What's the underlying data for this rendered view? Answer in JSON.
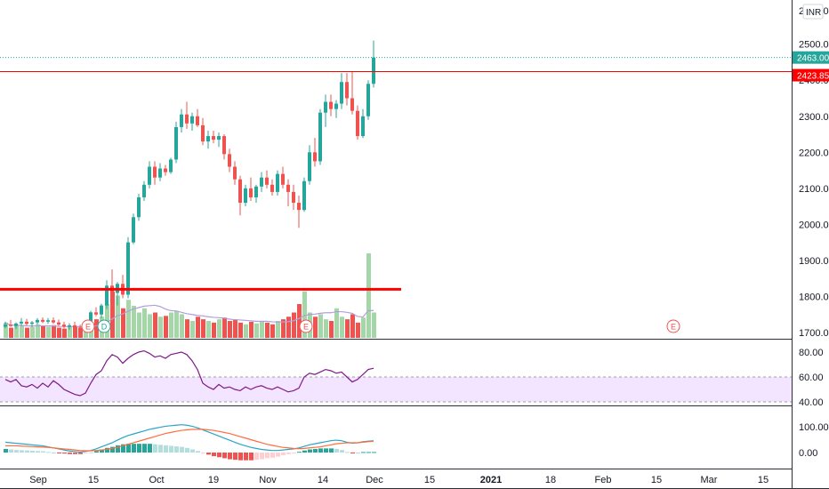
{
  "price_scale": {
    "currency": "INR",
    "top_partial_label": "2600.00",
    "ticks": [
      "2500.00",
      "2400.00",
      "2300.00",
      "2200.00",
      "2100.00",
      "2000.00",
      "1900.00",
      "1800.00",
      "1700.00"
    ]
  },
  "last_price_tag": "2463.00",
  "hline_tag": "2423.85",
  "rsi_scale": {
    "ticks": [
      "80.00",
      "60.00",
      "40.00"
    ]
  },
  "macd_scale": {
    "ticks": [
      "100.00",
      "0.00"
    ]
  },
  "time_axis": {
    "labels": [
      "Sep",
      "15",
      "Oct",
      "19",
      "Nov",
      "14",
      "Dec",
      "15",
      "2021",
      "18",
      "Feb",
      "15",
      "Mar",
      "15"
    ],
    "bold": [
      "2021"
    ]
  },
  "event_badges": [
    "E",
    "D",
    "E",
    "E"
  ],
  "colors": {
    "up": "#26a69a",
    "down": "#ef5350",
    "vol_up": "#a5d6a7",
    "vol_down": "#ef5350",
    "hline": "#ff0000",
    "rsi_line": "#7e1a88",
    "rsi_band": "#f3e5ff",
    "macd_line": "#2aa4c8",
    "signal_line": "#ff6d3a",
    "hist_up_strong": "#26a69a",
    "hist_up_weak": "#b2dfdb",
    "hist_down_strong": "#ef5350",
    "hist_down_weak": "#ffcdd2"
  },
  "chart_data": {
    "type": "candlestick",
    "horizontal_lines": [
      2423.85,
      1820
    ],
    "price_range": [
      1690,
      2600
    ],
    "candles": [
      {
        "o": 1716,
        "h": 1730,
        "l": 1712,
        "c": 1722
      },
      {
        "o": 1722,
        "h": 1735,
        "l": 1716,
        "c": 1718
      },
      {
        "o": 1718,
        "h": 1728,
        "l": 1710,
        "c": 1725
      },
      {
        "o": 1725,
        "h": 1740,
        "l": 1718,
        "c": 1730
      },
      {
        "o": 1730,
        "h": 1738,
        "l": 1720,
        "c": 1724
      },
      {
        "o": 1724,
        "h": 1732,
        "l": 1715,
        "c": 1728
      },
      {
        "o": 1728,
        "h": 1740,
        "l": 1722,
        "c": 1735
      },
      {
        "o": 1735,
        "h": 1742,
        "l": 1726,
        "c": 1730
      },
      {
        "o": 1730,
        "h": 1740,
        "l": 1724,
        "c": 1734
      },
      {
        "o": 1734,
        "h": 1742,
        "l": 1724,
        "c": 1728
      },
      {
        "o": 1728,
        "h": 1736,
        "l": 1718,
        "c": 1722
      },
      {
        "o": 1722,
        "h": 1730,
        "l": 1712,
        "c": 1716
      },
      {
        "o": 1716,
        "h": 1726,
        "l": 1708,
        "c": 1720
      },
      {
        "o": 1720,
        "h": 1730,
        "l": 1712,
        "c": 1714
      },
      {
        "o": 1714,
        "h": 1722,
        "l": 1706,
        "c": 1712
      },
      {
        "o": 1712,
        "h": 1730,
        "l": 1708,
        "c": 1726
      },
      {
        "o": 1726,
        "h": 1760,
        "l": 1720,
        "c": 1756
      },
      {
        "o": 1756,
        "h": 1770,
        "l": 1745,
        "c": 1750
      },
      {
        "o": 1750,
        "h": 1780,
        "l": 1740,
        "c": 1775
      },
      {
        "o": 1775,
        "h": 1845,
        "l": 1765,
        "c": 1830
      },
      {
        "o": 1830,
        "h": 1875,
        "l": 1800,
        "c": 1810
      },
      {
        "o": 1810,
        "h": 1840,
        "l": 1775,
        "c": 1835
      },
      {
        "o": 1835,
        "h": 1860,
        "l": 1795,
        "c": 1805
      },
      {
        "o": 1805,
        "h": 1965,
        "l": 1795,
        "c": 1950
      },
      {
        "o": 1950,
        "h": 2030,
        "l": 1945,
        "c": 2020
      },
      {
        "o": 2020,
        "h": 2085,
        "l": 2010,
        "c": 2075
      },
      {
        "o": 2075,
        "h": 2120,
        "l": 2065,
        "c": 2110
      },
      {
        "o": 2110,
        "h": 2175,
        "l": 2100,
        "c": 2160
      },
      {
        "o": 2160,
        "h": 2175,
        "l": 2110,
        "c": 2130
      },
      {
        "o": 2130,
        "h": 2170,
        "l": 2120,
        "c": 2155
      },
      {
        "o": 2155,
        "h": 2165,
        "l": 2135,
        "c": 2145
      },
      {
        "o": 2145,
        "h": 2185,
        "l": 2140,
        "c": 2180
      },
      {
        "o": 2180,
        "h": 2285,
        "l": 2170,
        "c": 2270
      },
      {
        "o": 2270,
        "h": 2320,
        "l": 2255,
        "c": 2305
      },
      {
        "o": 2305,
        "h": 2340,
        "l": 2265,
        "c": 2280
      },
      {
        "o": 2280,
        "h": 2310,
        "l": 2260,
        "c": 2300
      },
      {
        "o": 2300,
        "h": 2320,
        "l": 2270,
        "c": 2275
      },
      {
        "o": 2275,
        "h": 2295,
        "l": 2220,
        "c": 2230
      },
      {
        "o": 2230,
        "h": 2260,
        "l": 2210,
        "c": 2245
      },
      {
        "o": 2245,
        "h": 2260,
        "l": 2225,
        "c": 2235
      },
      {
        "o": 2235,
        "h": 2255,
        "l": 2215,
        "c": 2245
      },
      {
        "o": 2245,
        "h": 2250,
        "l": 2180,
        "c": 2195
      },
      {
        "o": 2195,
        "h": 2210,
        "l": 2145,
        "c": 2160
      },
      {
        "o": 2160,
        "h": 2175,
        "l": 2110,
        "c": 2125
      },
      {
        "o": 2125,
        "h": 2135,
        "l": 2025,
        "c": 2060
      },
      {
        "o": 2060,
        "h": 2110,
        "l": 2050,
        "c": 2100
      },
      {
        "o": 2100,
        "h": 2130,
        "l": 2065,
        "c": 2075
      },
      {
        "o": 2075,
        "h": 2110,
        "l": 2060,
        "c": 2105
      },
      {
        "o": 2105,
        "h": 2145,
        "l": 2090,
        "c": 2130
      },
      {
        "o": 2130,
        "h": 2150,
        "l": 2100,
        "c": 2110
      },
      {
        "o": 2110,
        "h": 2125,
        "l": 2080,
        "c": 2090
      },
      {
        "o": 2090,
        "h": 2150,
        "l": 2080,
        "c": 2140
      },
      {
        "o": 2140,
        "h": 2160,
        "l": 2100,
        "c": 2110
      },
      {
        "o": 2110,
        "h": 2125,
        "l": 2050,
        "c": 2090
      },
      {
        "o": 2090,
        "h": 2110,
        "l": 2040,
        "c": 2060
      },
      {
        "o": 2060,
        "h": 2080,
        "l": 1990,
        "c": 2040
      },
      {
        "o": 2040,
        "h": 2130,
        "l": 2035,
        "c": 2120
      },
      {
        "o": 2120,
        "h": 2220,
        "l": 2110,
        "c": 2200
      },
      {
        "o": 2200,
        "h": 2240,
        "l": 2160,
        "c": 2175
      },
      {
        "o": 2175,
        "h": 2320,
        "l": 2165,
        "c": 2310
      },
      {
        "o": 2310,
        "h": 2360,
        "l": 2270,
        "c": 2340
      },
      {
        "o": 2340,
        "h": 2360,
        "l": 2300,
        "c": 2320
      },
      {
        "o": 2320,
        "h": 2345,
        "l": 2295,
        "c": 2335
      },
      {
        "o": 2335,
        "h": 2420,
        "l": 2320,
        "c": 2395
      },
      {
        "o": 2395,
        "h": 2420,
        "l": 2330,
        "c": 2350
      },
      {
        "o": 2350,
        "h": 2425,
        "l": 2305,
        "c": 2315
      },
      {
        "o": 2315,
        "h": 2330,
        "l": 2235,
        "c": 2245
      },
      {
        "o": 2245,
        "h": 2320,
        "l": 2240,
        "c": 2300
      },
      {
        "o": 2300,
        "h": 2400,
        "l": 2290,
        "c": 2390
      },
      {
        "o": 2390,
        "h": 2510,
        "l": 2380,
        "c": 2463
      }
    ],
    "volume_relative": [
      0.18,
      0.12,
      0.15,
      0.14,
      0.12,
      0.13,
      0.16,
      0.14,
      0.13,
      0.15,
      0.12,
      0.11,
      0.13,
      0.14,
      0.12,
      0.13,
      0.18,
      0.22,
      0.25,
      0.4,
      0.55,
      0.5,
      0.35,
      0.45,
      0.38,
      0.3,
      0.35,
      0.28,
      0.3,
      0.25,
      0.26,
      0.3,
      0.32,
      0.28,
      0.22,
      0.2,
      0.25,
      0.22,
      0.2,
      0.18,
      0.22,
      0.24,
      0.2,
      0.22,
      0.18,
      0.16,
      0.19,
      0.17,
      0.2,
      0.18,
      0.16,
      0.2,
      0.22,
      0.25,
      0.3,
      0.4,
      0.55,
      0.3,
      0.25,
      0.28,
      0.22,
      0.2,
      0.35,
      0.25,
      0.22,
      0.28,
      0.18,
      0.24,
      1.0,
      0.3
    ],
    "rsi": {
      "band": [
        40,
        60
      ],
      "values": [
        58,
        56,
        58,
        53,
        52,
        54,
        51,
        55,
        52,
        57,
        54,
        50,
        48,
        46,
        45,
        47,
        55,
        62,
        65,
        73,
        78,
        76,
        71,
        75,
        78,
        80,
        81,
        79,
        76,
        77,
        75,
        78,
        79,
        80,
        78,
        73,
        66,
        55,
        52,
        50,
        54,
        51,
        52,
        50,
        49,
        52,
        50,
        52,
        53,
        51,
        50,
        52,
        50,
        48,
        49,
        51,
        60,
        63,
        62,
        64,
        66,
        65,
        63,
        64,
        60,
        56,
        58,
        62,
        66,
        67
      ]
    },
    "macd": {
      "macd": [
        40,
        38,
        36,
        34,
        32,
        30,
        28,
        26,
        22,
        18,
        14,
        10,
        6,
        4,
        2,
        4,
        8,
        14,
        22,
        30,
        38,
        48,
        58,
        66,
        72,
        78,
        84,
        90,
        94,
        98,
        102,
        104,
        106,
        108,
        106,
        102,
        96,
        88,
        80,
        72,
        64,
        56,
        48,
        40,
        32,
        26,
        20,
        16,
        12,
        10,
        8,
        8,
        10,
        12,
        14,
        18,
        24,
        30,
        34,
        38,
        42,
        46,
        48,
        46,
        40,
        36,
        38,
        42,
        44,
        46
      ],
      "signal": [
        26,
        26,
        26,
        25,
        24,
        23,
        22,
        21,
        20,
        18,
        16,
        14,
        12,
        10,
        8,
        7,
        7,
        8,
        10,
        12,
        16,
        20,
        26,
        32,
        38,
        44,
        50,
        56,
        62,
        68,
        74,
        78,
        82,
        86,
        88,
        90,
        90,
        90,
        88,
        86,
        82,
        78,
        74,
        68,
        62,
        56,
        50,
        44,
        38,
        32,
        28,
        24,
        20,
        18,
        16,
        15,
        16,
        18,
        20,
        22,
        26,
        30,
        34,
        36,
        38,
        38,
        38,
        40,
        42,
        44
      ]
    }
  }
}
